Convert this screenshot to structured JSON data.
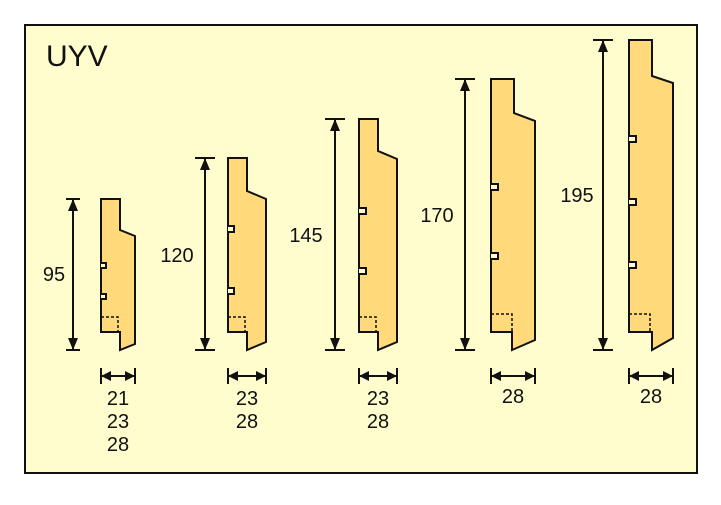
{
  "title": "UYV",
  "colors": {
    "background": "#fffccd",
    "board_fill": "#ffd97a",
    "outline": "#111111",
    "page": "#ffffff"
  },
  "profiles": [
    {
      "height_label": "95",
      "width_labels": [
        "21",
        "23",
        "28"
      ]
    },
    {
      "height_label": "120",
      "width_labels": [
        "23",
        "28"
      ]
    },
    {
      "height_label": "145",
      "width_labels": [
        "23",
        "28"
      ]
    },
    {
      "height_label": "170",
      "width_labels": [
        "28"
      ]
    },
    {
      "height_label": "195",
      "width_labels": [
        "28"
      ]
    }
  ]
}
